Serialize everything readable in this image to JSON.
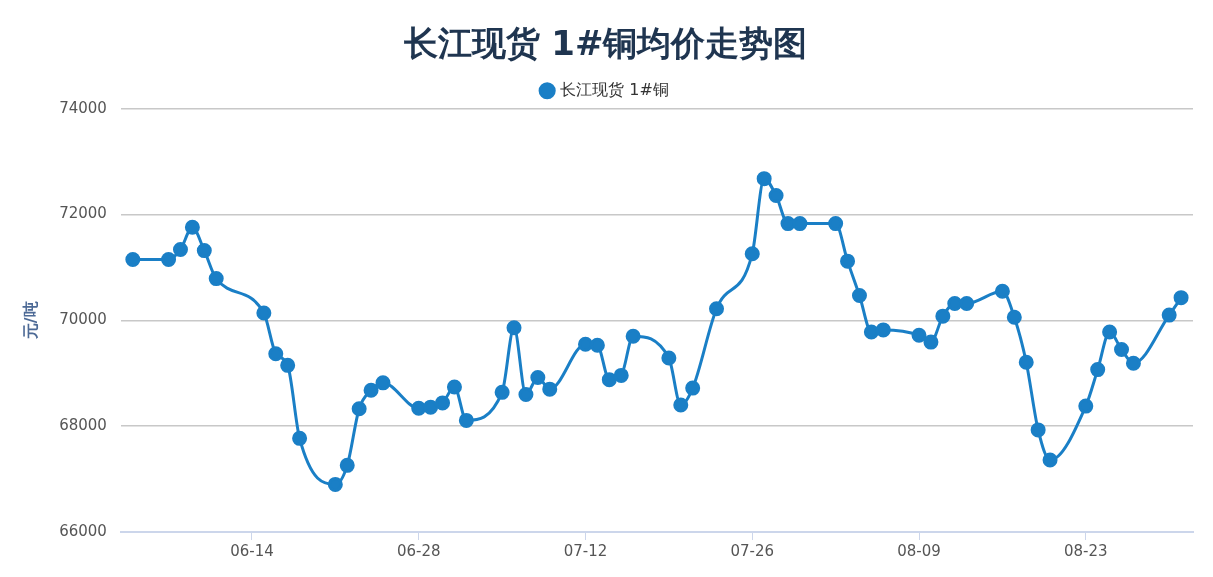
{
  "chart_data": {
    "type": "line",
    "title": "长江现货 1#铜均价走势图",
    "ylabel": "元/吨",
    "x": [
      "--06-04",
      "--06-07",
      "--06-08",
      "--06-09",
      "--06-10",
      "--06-11",
      "--06-15",
      "--06-16",
      "--06-17",
      "--06-18",
      "--06-21",
      "--06-22",
      "--06-23",
      "--06-24",
      "--06-25",
      "--06-28",
      "--06-29",
      "--06-30",
      "--07-01",
      "--07-02",
      "--07-05",
      "--07-06",
      "--07-07",
      "--07-08",
      "--07-09",
      "--07-12",
      "--07-13",
      "--07-14",
      "--07-15",
      "--07-16",
      "--07-19",
      "--07-20",
      "--07-21",
      "--07-23",
      "--07-26",
      "--07-27",
      "--07-28",
      "--07-29",
      "--07-30",
      "--08-02",
      "--08-03",
      "--08-04",
      "--08-05",
      "--08-06",
      "--08-09",
      "--08-10",
      "--08-11",
      "--08-12",
      "--08-13",
      "--08-16",
      "--08-17",
      "--08-18",
      "--08-19",
      "--08-20",
      "--08-23",
      "--08-24",
      "--08-25",
      "--08-26",
      "--08-27",
      "--08-30",
      "--08-31"
    ],
    "series": [
      {
        "name": "长江现货 1#铜",
        "color": "#1a7fc6",
        "values": [
          71150,
          71150,
          71340,
          71760,
          71320,
          70790,
          70140,
          69370,
          69150,
          67770,
          66900,
          67260,
          68330,
          68680,
          68820,
          68340,
          68360,
          68440,
          68740,
          68110,
          68640,
          69860,
          68600,
          68920,
          68700,
          69550,
          69530,
          68880,
          68960,
          69700,
          69290,
          68400,
          68720,
          70220,
          71260,
          72680,
          72360,
          71830,
          71830,
          71830,
          71120,
          70470,
          69780,
          69820,
          69720,
          69590,
          70080,
          70320,
          70320,
          70550,
          70060,
          69210,
          67930,
          67360,
          68380,
          69070,
          69780,
          69450,
          69190,
          70100,
          70430
        ]
      }
    ],
    "xlim": [
      "--06-03",
      "--09-01"
    ],
    "xticks": [
      {
        "value": "--06-14",
        "label": "06-14"
      },
      {
        "value": "--06-28",
        "label": "06-28"
      },
      {
        "value": "--07-12",
        "label": "07-12"
      },
      {
        "value": "--07-26",
        "label": "07-26"
      },
      {
        "value": "--08-09",
        "label": "08-09"
      },
      {
        "value": "--08-23",
        "label": "08-23"
      }
    ],
    "ylim": [
      66000,
      74000
    ],
    "yticks": [
      66000,
      68000,
      70000,
      72000,
      74000
    ],
    "grid": "y",
    "legend": "top",
    "marker": "circle",
    "line_style": "solid"
  }
}
